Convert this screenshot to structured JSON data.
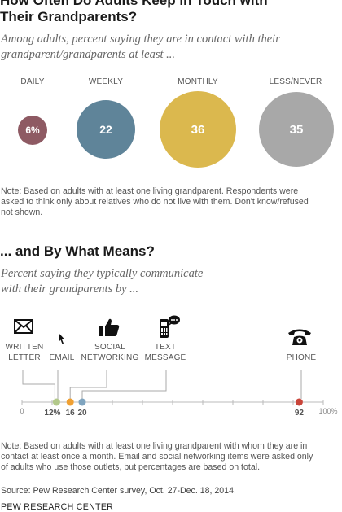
{
  "chart_data": [
    {
      "type": "bubble",
      "title": "How Often Do Adults Keep in Touch with Their Grandparents?",
      "title_lines": [
        "How Often Do Adults Keep in Touch with",
        "Their Grandparents?"
      ],
      "subtitle_lines": [
        "Among adults, percent saying they are in contact with their",
        "grandparent/grandparents at least ..."
      ],
      "categories": [
        "DAILY",
        "WEEKLY",
        "MONTHLY",
        "LESS/NEVER"
      ],
      "values": [
        6,
        22,
        36,
        35
      ],
      "value_labels": [
        "6%",
        "22",
        "36",
        "35"
      ],
      "colors": [
        "#8e5a63",
        "#5f8499",
        "#dbb84e",
        "#a8a8a8"
      ],
      "note_lines": [
        "Note: Based on adults with at least one living grandparent. Respondents were",
        "asked to think only about relatives who do not live with them. Don't know/refused",
        "not shown."
      ]
    },
    {
      "type": "scatter",
      "title": "... and By What Means?",
      "subtitle_lines": [
        "Percent saying they typically communicate",
        "with their grandparents by ..."
      ],
      "xlim": [
        0,
        100
      ],
      "x_tick_labels": [
        "0",
        "100%"
      ],
      "points": [
        {
          "label_lines": [
            "WRITTEN",
            "LETTER"
          ],
          "value": 12,
          "value_label": "12%",
          "icon": "envelope-icon",
          "color": "#b3c98b"
        },
        {
          "label_lines": [
            "EMAIL"
          ],
          "value": 12,
          "value_label": "",
          "icon": "cursor-arrow-icon",
          "color": "#b3c98b"
        },
        {
          "label_lines": [
            "SOCIAL",
            "NETWORKING"
          ],
          "value": 16,
          "value_label": "16",
          "icon": "thumbs-up-icon",
          "color": "#f0a032"
        },
        {
          "label_lines": [
            "TEXT",
            "MESSAGE"
          ],
          "value": 20,
          "value_label": "20",
          "icon": "phone-message-icon",
          "color": "#7fa4bf"
        },
        {
          "label_lines": [
            "PHONE"
          ],
          "value": 92,
          "value_label": "92",
          "icon": "telephone-icon",
          "color": "#c9453a"
        }
      ],
      "note_lines": [
        "Note: Based on adults with at least one living grandparent with whom they are in",
        "contact at least once a month. Email and social networking items were asked only",
        "of adults who use those outlets, but percentages are based on total."
      ]
    }
  ],
  "source": "Source: Pew Research Center survey, Oct. 27-Dec. 18, 2014.",
  "brand": "PEW RESEARCH CENTER"
}
